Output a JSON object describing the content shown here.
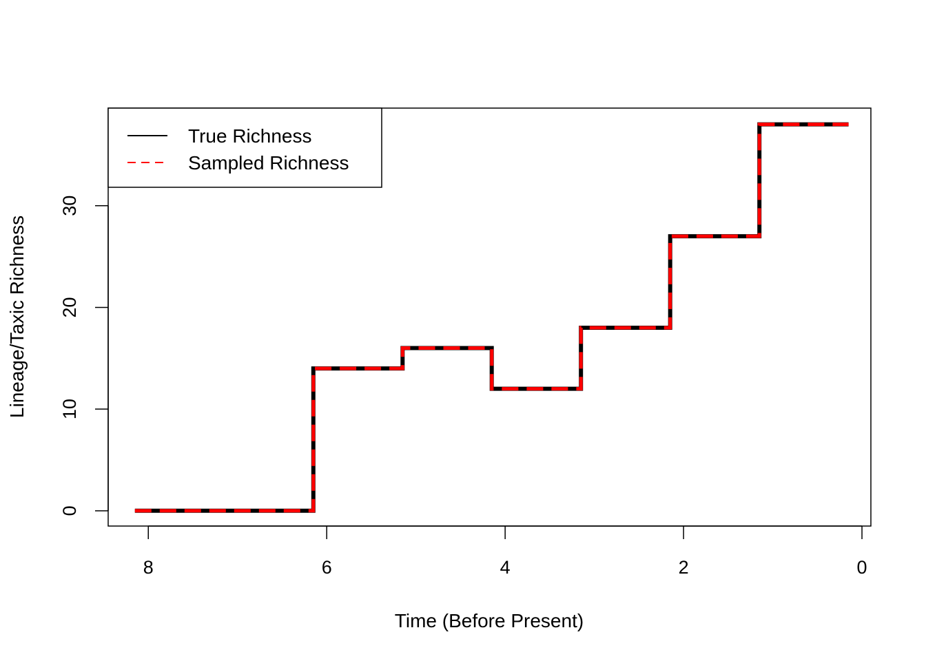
{
  "chart_data": {
    "type": "line",
    "step": true,
    "title": "",
    "xlabel": "Time (Before Present)",
    "ylabel": "Lineage/Taxic Richness",
    "xlim": [
      8.45,
      -0.1
    ],
    "ylim": [
      -1.5,
      39.6
    ],
    "x_reversed": true,
    "x_ticks": [
      8,
      6,
      4,
      2,
      0
    ],
    "y_ticks": [
      0,
      10,
      20,
      30
    ],
    "grid": false,
    "legend_position": "top-left",
    "series": [
      {
        "name": "True Richness",
        "color": "#000000",
        "style": "solid",
        "x": [
          8.15,
          6.15,
          6.15,
          5.15,
          5.15,
          4.15,
          4.15,
          3.15,
          3.15,
          2.15,
          2.15,
          1.15,
          1.15,
          0.15
        ],
        "y": [
          0,
          0,
          14,
          14,
          16,
          16,
          12,
          12,
          18,
          18,
          27,
          27,
          38,
          38
        ]
      },
      {
        "name": "Sampled Richness",
        "color": "#ff0000",
        "style": "dashed",
        "x": [
          8.15,
          6.15,
          6.15,
          5.15,
          5.15,
          4.15,
          4.15,
          3.15,
          3.15,
          2.15,
          2.15,
          1.15,
          1.15,
          0.15
        ],
        "y": [
          0,
          0,
          14,
          14,
          16,
          16,
          12,
          12,
          18,
          18,
          27,
          27,
          38,
          38
        ]
      }
    ]
  }
}
